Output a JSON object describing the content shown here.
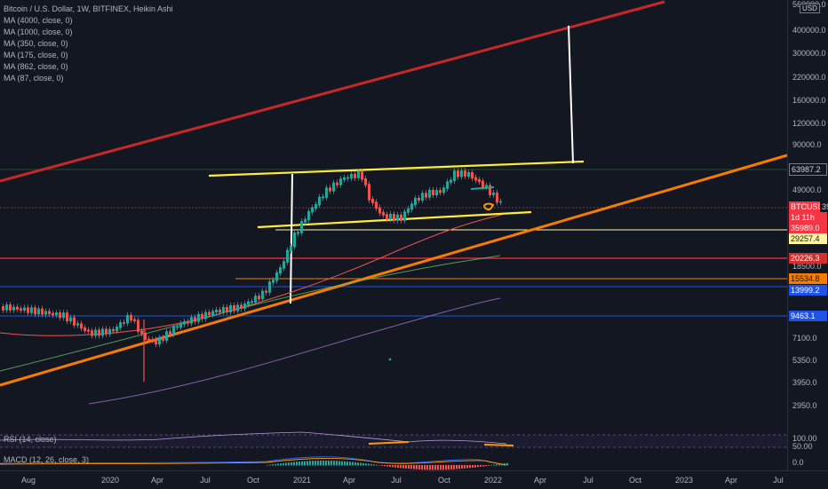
{
  "legend": {
    "title": "Bitcoin / U.S. Dollar, 1W, BITFINEX, Heikin Ashi",
    "mas": [
      "MA (4000, close, 0)",
      "MA (1000, close, 0)",
      "MA (350, close, 0)",
      "MA (175, close, 0)",
      "MA (862, close, 0)",
      "MA (87, close, 0)"
    ]
  },
  "price_axis": {
    "currency": "USD",
    "ticks": [
      "560000.0",
      "400000.0",
      "300000.0",
      "220000.0",
      "160000.0",
      "120000.0",
      "90000.0",
      "49000.0",
      "18500.0",
      "7100.0",
      "5350.0",
      "3950.0",
      "2950.0"
    ],
    "labels": [
      {
        "text": "63987.2",
        "bg": "#131722",
        "fg": "#d1d4dc",
        "border": "#787b86"
      },
      {
        "text": "BTCUSD",
        "bg": "#f23645",
        "fg": "#ffffff"
      },
      {
        "text": "39129.7",
        "bg": "#131722",
        "fg": "#d1d4dc"
      },
      {
        "text": "1d 11h",
        "bg": "#f23645",
        "fg": "#ffffff"
      },
      {
        "text": "35989.0",
        "bg": "#f23645",
        "fg": "#ffffff"
      },
      {
        "text": "29257.4",
        "bg": "#fff59d",
        "fg": "#131722"
      },
      {
        "text": "20226.3",
        "bg": "#d32f2f",
        "fg": "#ffffff"
      },
      {
        "text": "15534.8",
        "bg": "#f57c00",
        "fg": "#131722"
      },
      {
        "text": "13999.2",
        "bg": "#1e53e5",
        "fg": "#ffffff"
      },
      {
        "text": "9463.1",
        "bg": "#1e53e5",
        "fg": "#ffffff"
      }
    ]
  },
  "time_axis": [
    "Aug",
    "2020",
    "Apr",
    "Jul",
    "Oct",
    "2021",
    "Apr",
    "Jul",
    "Oct",
    "2022",
    "Apr",
    "Jul",
    "Oct",
    "2023",
    "Apr",
    "Jul"
  ],
  "rsi": {
    "label": "RSI (14, close)",
    "ticks": [
      "100.00",
      "50.00"
    ]
  },
  "macd": {
    "label": "MACD (12, 26, close, 3)",
    "ticks": [
      "0.0"
    ]
  },
  "colors": {
    "up": "#26a69a",
    "down": "#ef5350",
    "channel_top": "#c62828",
    "channel_low": "#f57c00",
    "range": "#ffeb3b"
  }
}
